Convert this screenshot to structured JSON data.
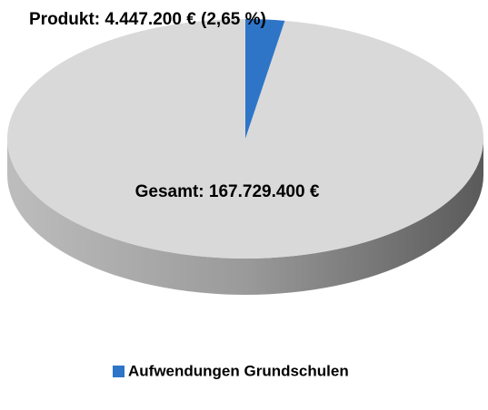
{
  "chart_data": {
    "type": "pie",
    "style": "3d",
    "total": {
      "value": 167729400,
      "label": "Gesamt: 167.729.400 €"
    },
    "rest_color": "#d9d9d9",
    "slices": [
      {
        "name": "Aufwendungen Grundschulen",
        "value": 4447200,
        "label": "Produkt: 4.447.200 € (2,65 %)",
        "color": "#2e75c8"
      }
    ]
  }
}
